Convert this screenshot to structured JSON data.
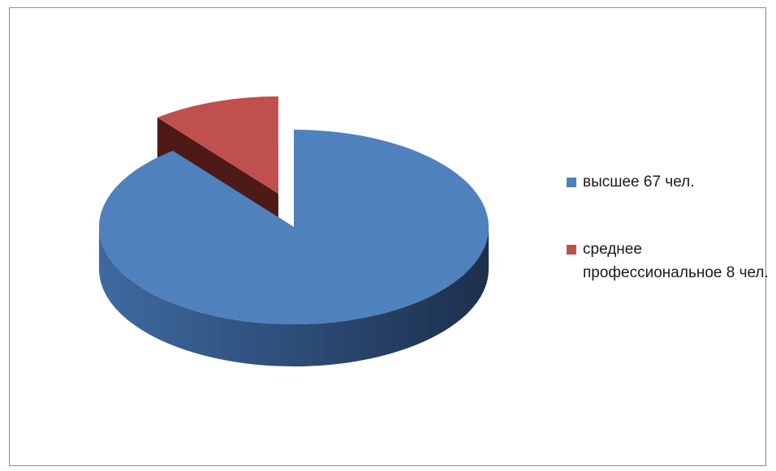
{
  "chart_data": {
    "type": "pie",
    "style": "3d-exploded",
    "title": "",
    "slices": [
      {
        "label": "высшее 67 чел.",
        "value": 67,
        "color": "#4f81bd",
        "side_color": "#2b4a6e"
      },
      {
        "label": "среднее профессиональное 8 чел.",
        "value": 8,
        "color": "#c0504d",
        "side_color": "#4d1a18"
      }
    ],
    "legend_position": "right"
  }
}
